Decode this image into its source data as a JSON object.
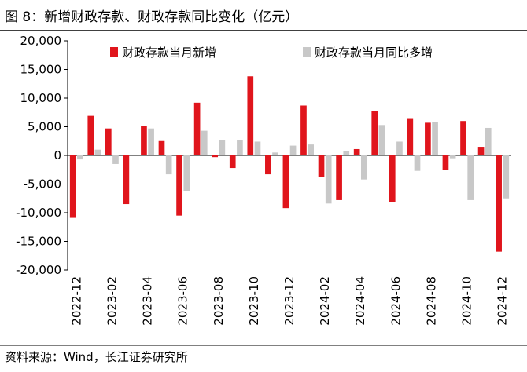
{
  "chart_data": {
    "type": "bar",
    "title": "图 8：新增财政存款、财政存款同比变化（亿元）",
    "source": "资料来源：Wind，长江证券研究所",
    "categories": [
      "2022-12",
      null,
      "2023-02",
      null,
      "2023-04",
      null,
      "2023-06",
      null,
      "2023-08",
      null,
      "2023-10",
      null,
      "2023-12",
      null,
      "2024-02",
      null,
      "2024-04",
      null,
      "2024-06",
      null,
      "2024-08",
      null,
      "2024-10",
      null,
      "2024-12"
    ],
    "series": [
      {
        "name": "财政存款当月新增",
        "color": "#e0151c",
        "values": [
          -10900,
          6900,
          4700,
          -8500,
          5200,
          2500,
          -10500,
          9200,
          -300,
          -2200,
          13800,
          -3300,
          -9200,
          8700,
          -3800,
          -7800,
          1100,
          7700,
          -8200,
          6500,
          5700,
          -2500,
          6000,
          1500,
          -16800
        ]
      },
      {
        "name": "财政存款当月同比多增",
        "color": "#c8c8c8",
        "values": [
          -700,
          1000,
          -1500,
          0,
          4700,
          -3300,
          -6300,
          4300,
          2600,
          2700,
          2400,
          500,
          1700,
          1900,
          -8400,
          800,
          -4200,
          5300,
          2400,
          -2700,
          5800,
          -500,
          -7800,
          4800,
          -7500
        ]
      }
    ],
    "ylim": [
      -20000,
      20000
    ],
    "yticks": [
      {
        "value": -20000,
        "label": "-20,000"
      },
      {
        "value": -15000,
        "label": "-15,000"
      },
      {
        "value": -10000,
        "label": "-10,000"
      },
      {
        "value": -5000,
        "label": "-5,000"
      },
      0,
      {
        "value": 5000,
        "label": "5,000"
      },
      {
        "value": 10000,
        "label": "10,000"
      },
      {
        "value": 15000,
        "label": "15,000"
      },
      {
        "value": 20000,
        "label": "20,000"
      }
    ],
    "legend": "top"
  }
}
